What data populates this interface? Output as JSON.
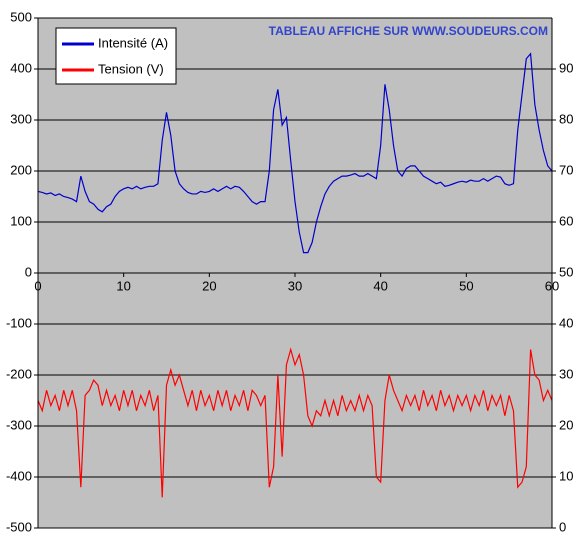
{
  "chart_data": {
    "type": "line",
    "annotation": "TABLEAU AFFICHE SUR WWW.SOUDEURS.COM",
    "annotation_color": "#3344cc",
    "background": "#c0c0c0",
    "grid": true,
    "legend": "upper left",
    "x": [
      0,
      0.5,
      1,
      1.5,
      2,
      2.5,
      3,
      3.5,
      4,
      4.5,
      5,
      5.5,
      6,
      6.5,
      7,
      7.5,
      8,
      8.5,
      9,
      9.5,
      10,
      10.5,
      11,
      11.5,
      12,
      12.5,
      13,
      13.5,
      14,
      14.5,
      15,
      15.5,
      16,
      16.5,
      17,
      17.5,
      18,
      18.5,
      19,
      19.5,
      20,
      20.5,
      21,
      21.5,
      22,
      22.5,
      23,
      23.5,
      24,
      24.5,
      25,
      25.5,
      26,
      26.5,
      27,
      27.5,
      28,
      28.5,
      29,
      29.5,
      30,
      30.5,
      31,
      31.5,
      32,
      32.5,
      33,
      33.5,
      34,
      34.5,
      35,
      35.5,
      36,
      36.5,
      37,
      37.5,
      38,
      38.5,
      39,
      39.5,
      40,
      40.5,
      41,
      41.5,
      42,
      42.5,
      43,
      43.5,
      44,
      44.5,
      45,
      45.5,
      46,
      46.5,
      47,
      47.5,
      48,
      48.5,
      49,
      49.5,
      50,
      50.5,
      51,
      51.5,
      52,
      52.5,
      53,
      53.5,
      54,
      54.5,
      55,
      55.5,
      56,
      56.5,
      57,
      57.5,
      58,
      58.5,
      59,
      59.5,
      60
    ],
    "xlim": [
      0,
      60
    ],
    "xticks": [
      0,
      10,
      20,
      30,
      40,
      50,
      60
    ],
    "ylim": [
      -500,
      500
    ],
    "yticks": [
      -500,
      -400,
      -300,
      -200,
      -100,
      0,
      100,
      200,
      300,
      400,
      500
    ],
    "y2lim": [
      0,
      100
    ],
    "y2ticks": [
      0,
      10,
      20,
      30,
      40,
      50,
      60,
      70,
      80,
      90
    ],
    "series": [
      {
        "name": "Intensité (A)",
        "color": "#0000cc",
        "values": [
          160,
          158,
          155,
          157,
          152,
          155,
          150,
          148,
          145,
          140,
          190,
          160,
          140,
          135,
          125,
          120,
          130,
          135,
          150,
          160,
          165,
          168,
          165,
          170,
          165,
          168,
          170,
          170,
          175,
          260,
          315,
          270,
          200,
          175,
          165,
          158,
          155,
          155,
          160,
          158,
          160,
          165,
          160,
          165,
          170,
          165,
          170,
          168,
          160,
          150,
          140,
          135,
          140,
          140,
          200,
          320,
          360,
          290,
          305,
          220,
          140,
          80,
          40,
          40,
          60,
          100,
          130,
          155,
          170,
          180,
          185,
          190,
          190,
          192,
          195,
          190,
          190,
          195,
          190,
          185,
          250,
          370,
          320,
          250,
          200,
          190,
          205,
          210,
          210,
          200,
          190,
          185,
          180,
          175,
          178,
          170,
          172,
          175,
          178,
          180,
          178,
          182,
          180,
          180,
          185,
          180,
          185,
          190,
          188,
          175,
          172,
          175,
          280,
          350,
          420,
          430,
          330,
          280,
          240,
          210,
          200
        ]
      },
      {
        "name": "Tension (V)",
        "color": "#ff0000",
        "axis": "y2",
        "values": [
          25,
          23,
          27,
          24,
          26,
          23,
          27,
          24,
          27,
          23,
          8,
          26,
          27,
          29,
          28,
          24,
          27,
          24,
          26,
          23,
          27,
          24,
          27,
          23,
          26,
          24,
          27,
          23,
          26,
          6,
          28,
          31,
          28,
          30,
          27,
          24,
          27,
          23,
          27,
          24,
          26,
          23,
          27,
          24,
          27,
          23,
          26,
          24,
          27,
          23,
          27,
          26,
          24,
          26,
          8,
          12,
          30,
          14,
          32,
          35,
          32,
          34,
          30,
          22,
          20,
          23,
          22,
          25,
          22,
          25,
          22,
          26,
          23,
          25,
          23,
          26,
          23,
          26,
          24,
          10,
          9,
          25,
          30,
          27,
          25,
          23,
          26,
          24,
          26,
          23,
          27,
          24,
          26,
          23,
          27,
          24,
          26,
          23,
          26,
          24,
          26,
          23,
          26,
          24,
          27,
          23,
          26,
          24,
          26,
          22,
          26,
          23,
          8,
          9,
          12,
          35,
          30,
          29,
          25,
          27,
          25
        ]
      }
    ]
  }
}
